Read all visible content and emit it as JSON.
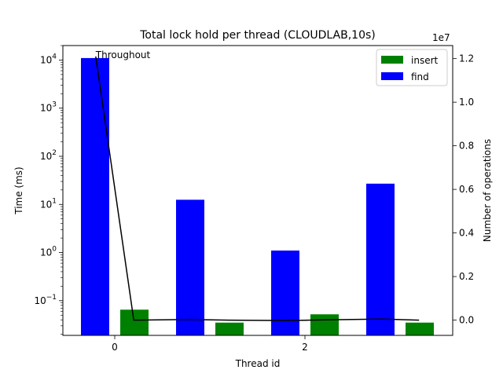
{
  "chart_data": {
    "type": "bar",
    "title": "Total lock hold per thread (CLOUDLAB,10s)",
    "xlabel": "Thread id",
    "ylabel": "Time (ms)",
    "ylabel_right": "Number of operations",
    "right_axis_exponent": "1e7",
    "yscale": "log",
    "ylim": [
      0.019,
      20000
    ],
    "ylim_right": [
      -0.07,
      1.26
    ],
    "x_ticks": [
      0,
      2
    ],
    "threads": [
      0,
      1,
      2,
      3
    ],
    "series": [
      {
        "name": "insert",
        "color": "#008000",
        "values": [
          0.065,
          0.035,
          0.052,
          0.035
        ]
      },
      {
        "name": "find",
        "color": "#0000ff",
        "values": [
          11000,
          12.5,
          1.1,
          27
        ]
      }
    ],
    "line": {
      "name": "Throughout",
      "color": "#000000",
      "axis": "right",
      "x": [
        -0.2,
        0.2,
        0.8,
        1.2,
        1.8,
        2.2,
        2.8,
        3.2
      ],
      "values": [
        1.21,
        0.0,
        0.003,
        0.0,
        -0.002,
        0.001,
        0.005,
        0.0
      ]
    },
    "legend": {
      "position": "top-right",
      "entries": [
        "insert",
        "find"
      ]
    },
    "grid": false
  }
}
